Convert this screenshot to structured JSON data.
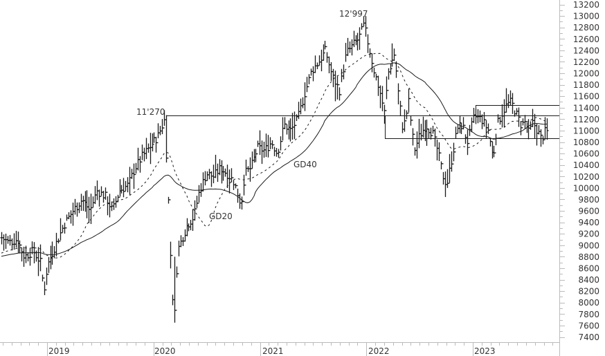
{
  "chart_data": {
    "type": "ohlc",
    "title": "",
    "xlabel": "",
    "ylabel": "",
    "ylim": [
      7400,
      13200
    ],
    "yticks": [
      7400,
      7600,
      7800,
      8000,
      8200,
      8400,
      8600,
      8800,
      9000,
      9200,
      9400,
      9600,
      9800,
      10000,
      10200,
      10400,
      10600,
      10800,
      11000,
      11200,
      11400,
      11600,
      11800,
      12000,
      12200,
      12400,
      12600,
      12800,
      13000,
      13200
    ],
    "xticks": [
      "2019",
      "2020",
      "2021",
      "2022",
      "2023"
    ],
    "grid": false,
    "legend": "none",
    "series": [
      {
        "name": "Weekly OHLC bars",
        "style": "black bar"
      },
      {
        "name": "GD20",
        "style": "dashed",
        "label": "GD20"
      },
      {
        "name": "GD40",
        "style": "solid thin",
        "label": "GD40"
      }
    ],
    "annotations": [
      {
        "text": "12'997",
        "value": 12997,
        "position": "all-time high, early 2022"
      },
      {
        "text": "11'270",
        "value": 11270,
        "position": "peak, Feb 2020"
      },
      {
        "text": "GD40",
        "position": "below 40-week MA, mid 2021"
      },
      {
        "text": "GD20",
        "position": "below 20-week MA, mid 2020"
      }
    ],
    "horizontal_lines": [
      {
        "value": 11270,
        "from": "Feb 2020",
        "to": "right edge"
      },
      {
        "value": 10870,
        "from": "early 2022",
        "to": "right edge"
      },
      {
        "value": 11440,
        "from": "late 2022",
        "to": "right edge"
      }
    ],
    "key_levels": {
      "start_2018_approx": 9150,
      "low_late_2018": 8130,
      "high_feb_2020": 11270,
      "low_mar_2020": 7650,
      "high_dec_2021": 12997,
      "low_oct_2022": 10000,
      "high_2023": 11600,
      "last_approx": 10950
    }
  },
  "axis": {
    "y_labels": [
      "13200",
      "13000",
      "12800",
      "12600",
      "12400",
      "12200",
      "12000",
      "11800",
      "11600",
      "11400",
      "11200",
      "11000",
      "10800",
      "10600",
      "10400",
      "10200",
      "10000",
      "9800",
      "9600",
      "9400",
      "9200",
      "9000",
      "8800",
      "8600",
      "8400",
      "8200",
      "8000",
      "7800",
      "7600",
      "7400"
    ],
    "x_labels": [
      "2019",
      "2020",
      "2021",
      "2022",
      "2023"
    ]
  },
  "labels": {
    "ath": "12'997",
    "feb2020": "11'270",
    "gd40": "GD40",
    "gd20": "GD20"
  },
  "colors": {
    "bars": "#1a1a1a",
    "axis": "#bbbbbb",
    "text": "#333333",
    "label_text": "#4a4a4a"
  }
}
